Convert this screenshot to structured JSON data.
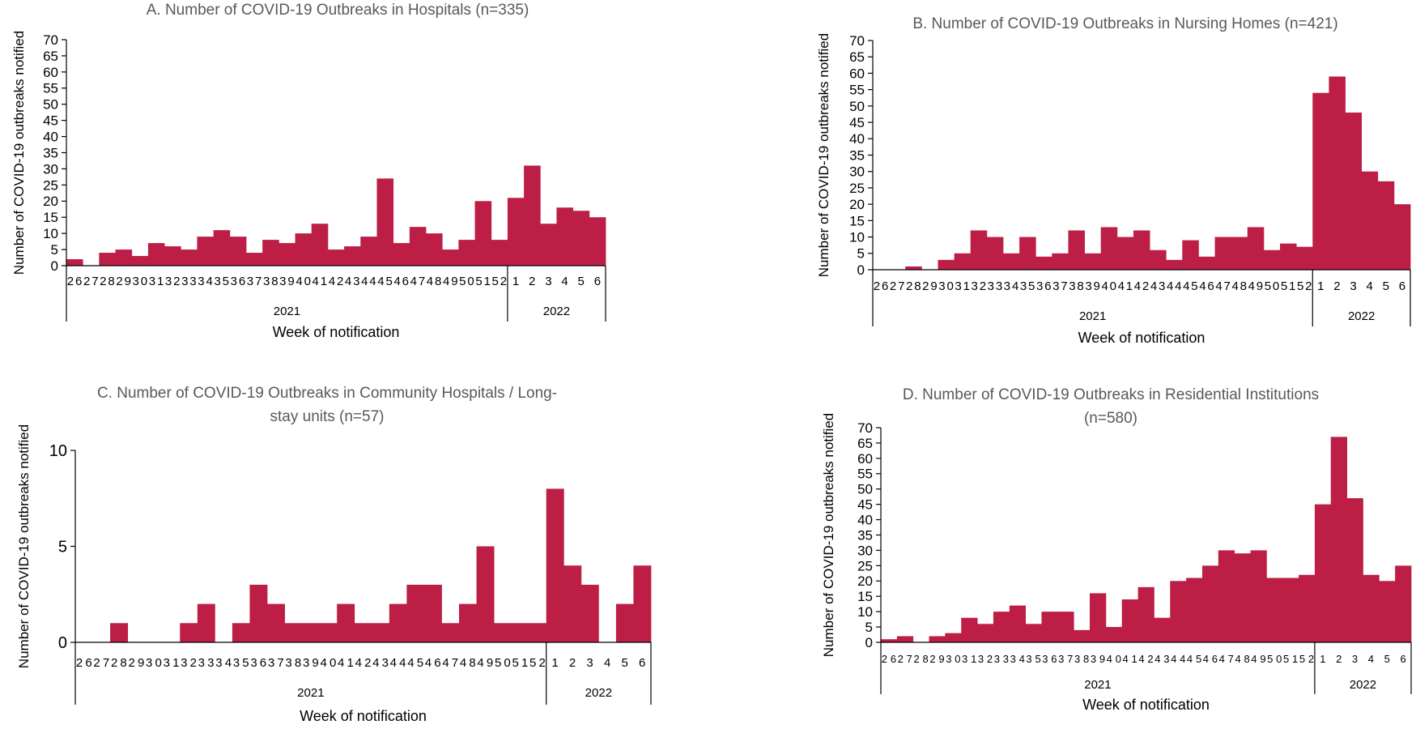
{
  "colors": {
    "bar": "#BC1E45",
    "axis": "#000000",
    "title": "#595959"
  },
  "chart_data": [
    {
      "type": "bar",
      "title": "A. Number of COVID-19 Outbreaks in Hospitals (n=335)",
      "ylabel": "Number of COVID-19 outbreaks notified",
      "xlabel": "Week of notification",
      "ylim": [
        0,
        70
      ],
      "yticks": [
        0,
        5,
        10,
        15,
        20,
        25,
        30,
        35,
        40,
        45,
        50,
        55,
        60,
        65,
        70
      ],
      "grid": false,
      "categories": [
        "26",
        "27",
        "28",
        "29",
        "30",
        "31",
        "32",
        "33",
        "34",
        "35",
        "36",
        "37",
        "38",
        "39",
        "40",
        "41",
        "42",
        "43",
        "44",
        "45",
        "46",
        "47",
        "48",
        "49",
        "50",
        "51",
        "52",
        "1",
        "2",
        "3",
        "4",
        "5",
        "6"
      ],
      "groups": [
        {
          "label": "2021",
          "count": 27
        },
        {
          "label": "2022",
          "count": 6
        }
      ],
      "values": [
        2,
        0,
        4,
        5,
        3,
        7,
        6,
        5,
        9,
        11,
        9,
        4,
        8,
        7,
        10,
        13,
        5,
        6,
        9,
        27,
        7,
        12,
        10,
        5,
        8,
        20,
        8,
        21,
        31,
        13,
        18,
        17,
        15
      ]
    },
    {
      "type": "bar",
      "title": "B. Number of COVID-19 Outbreaks in Nursing Homes (n=421)",
      "ylabel": "Number of COVID-19 outbreaks notified",
      "xlabel": "Week of notification",
      "ylim": [
        0,
        70
      ],
      "yticks": [
        0,
        5,
        10,
        15,
        20,
        25,
        30,
        35,
        40,
        45,
        50,
        55,
        60,
        65,
        70
      ],
      "grid": false,
      "categories": [
        "26",
        "27",
        "28",
        "29",
        "30",
        "31",
        "32",
        "33",
        "34",
        "35",
        "36",
        "37",
        "38",
        "39",
        "40",
        "41",
        "42",
        "43",
        "44",
        "45",
        "46",
        "47",
        "48",
        "49",
        "50",
        "51",
        "52",
        "1",
        "2",
        "3",
        "4",
        "5",
        "6"
      ],
      "groups": [
        {
          "label": "2021",
          "count": 27
        },
        {
          "label": "2022",
          "count": 6
        }
      ],
      "values": [
        0,
        0,
        1,
        0,
        3,
        5,
        12,
        10,
        5,
        10,
        4,
        5,
        12,
        5,
        13,
        10,
        12,
        6,
        3,
        9,
        4,
        10,
        10,
        13,
        6,
        8,
        7,
        54,
        59,
        48,
        30,
        27,
        20
      ]
    },
    {
      "type": "bar",
      "title": "C. Number of COVID-19 Outbreaks in Community Hospitals / Long-stay units (n=57)",
      "title_lines": [
        "C. Number of COVID-19 Outbreaks in Community Hospitals / Long-",
        "stay units (n=57)"
      ],
      "ylabel": "Number of COVID-19 outbreaks notified",
      "xlabel": "Week of notification",
      "ylim": [
        0,
        10
      ],
      "yticks": [
        0,
        5,
        10
      ],
      "grid": false,
      "categories": [
        "26",
        "27",
        "28",
        "29",
        "30",
        "31",
        "32",
        "33",
        "34",
        "35",
        "36",
        "37",
        "38",
        "39",
        "40",
        "41",
        "42",
        "43",
        "44",
        "45",
        "46",
        "47",
        "48",
        "49",
        "50",
        "51",
        "52",
        "1",
        "2",
        "3",
        "4",
        "5",
        "6"
      ],
      "groups": [
        {
          "label": "2021",
          "count": 27
        },
        {
          "label": "2022",
          "count": 6
        }
      ],
      "values": [
        0,
        0,
        1,
        0,
        0,
        0,
        1,
        2,
        0,
        1,
        3,
        2,
        1,
        1,
        1,
        2,
        1,
        1,
        2,
        3,
        3,
        1,
        2,
        5,
        1,
        1,
        1,
        8,
        4,
        3,
        0,
        2,
        4
      ]
    },
    {
      "type": "bar",
      "title": "D. Number of COVID-19 Outbreaks in Residential Institutions (n=580)",
      "title_lines": [
        "D. Number of COVID-19 Outbreaks in Residential Institutions",
        "(n=580)"
      ],
      "ylabel": "Number of COVID-19 outbreaks notified",
      "xlabel": "Week of notification",
      "ylim": [
        0,
        70
      ],
      "yticks": [
        0,
        5,
        10,
        15,
        20,
        25,
        30,
        35,
        40,
        45,
        50,
        55,
        60,
        65,
        70
      ],
      "grid": false,
      "categories": [
        "26",
        "27",
        "28",
        "29",
        "30",
        "31",
        "32",
        "33",
        "34",
        "35",
        "36",
        "37",
        "38",
        "39",
        "40",
        "41",
        "42",
        "43",
        "44",
        "45",
        "46",
        "47",
        "48",
        "49",
        "50",
        "51",
        "52",
        "1",
        "2",
        "3",
        "4",
        "5",
        "6"
      ],
      "groups": [
        {
          "label": "2021",
          "count": 27
        },
        {
          "label": "2022",
          "count": 6
        }
      ],
      "values": [
        1,
        2,
        0,
        2,
        3,
        8,
        6,
        10,
        12,
        6,
        10,
        10,
        4,
        16,
        5,
        14,
        18,
        8,
        20,
        21,
        25,
        30,
        29,
        30,
        21,
        21,
        22,
        45,
        67,
        47,
        22,
        20,
        25
      ]
    }
  ]
}
